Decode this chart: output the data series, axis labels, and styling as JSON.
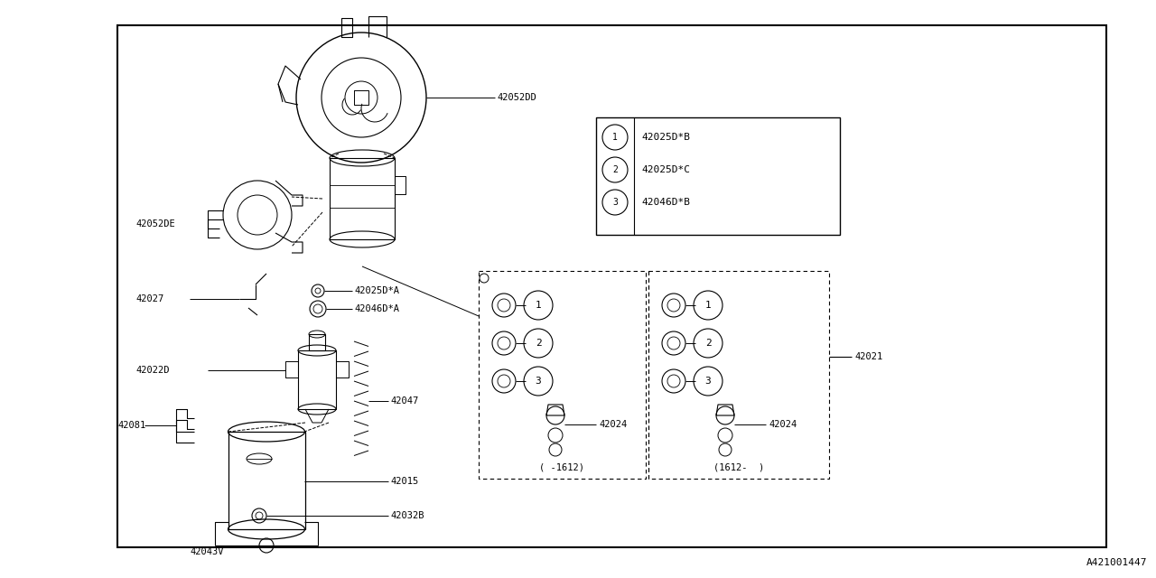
{
  "bg_color": "#ffffff",
  "line_color": "#000000",
  "text_color": "#000000",
  "title_bottom_right": "A421001447",
  "figsize": [
    12.8,
    6.4
  ],
  "dpi": 100,
  "legend_items": [
    {
      "num": "1",
      "text": "42025D*B"
    },
    {
      "num": "2",
      "text": "42025D*C"
    },
    {
      "num": "3",
      "text": "42046D*B"
    }
  ],
  "variant_left": "( -1612)",
  "variant_right": "(1612-  )"
}
